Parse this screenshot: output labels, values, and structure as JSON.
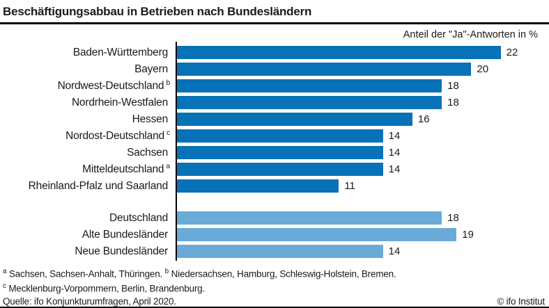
{
  "chart_data": {
    "type": "bar",
    "orientation": "horizontal",
    "title": "Beschäftigungsabbau in Betrieben nach Bundesländern",
    "value_axis_label": "Anteil der \"Ja\"-Antworten in %",
    "xlim": [
      0,
      25
    ],
    "grid": false,
    "colors": {
      "laender": "#0872b8",
      "aggregate": "#6aaad8",
      "axis": "#000000"
    },
    "groups": [
      {
        "color_key": "laender",
        "rows": [
          {
            "label": "Baden-Württemberg",
            "value": 22
          },
          {
            "label": "Bayern",
            "value": 20
          },
          {
            "label": "Nordwest-Deutschland",
            "sup": "b",
            "value": 18
          },
          {
            "label": "Nordrhein-Westfalen",
            "value": 18
          },
          {
            "label": "Hessen",
            "value": 16
          },
          {
            "label": "Nordost-Deutschland",
            "sup": "c",
            "value": 14
          },
          {
            "label": "Sachsen",
            "value": 14
          },
          {
            "label": "Mitteldeutschland",
            "sup": "a",
            "value": 14
          },
          {
            "label": "Rheinland-Pfalz und Saarland",
            "value": 11
          }
        ]
      },
      {
        "color_key": "aggregate",
        "rows": [
          {
            "label": "Deutschland",
            "value": 18
          },
          {
            "label": "Alte Bundesländer",
            "value": 19
          },
          {
            "label": "Neue Bundesländer",
            "value": 14
          }
        ]
      }
    ]
  },
  "footnotes": {
    "sup_a": "a",
    "text_a": "Sachsen, Sachsen-Anhalt, Thüringen.",
    "sup_b": "b",
    "text_b": "Niedersachsen, Hamburg, Schleswig-Holstein, Bremen.",
    "sup_c": "c",
    "text_c": "Mecklenburg-Vorpommern, Berlin, Brandenburg.",
    "source": "Quelle: ifo Konjunkturumfragen, April 2020.",
    "copyright": "© ifo Institut"
  }
}
